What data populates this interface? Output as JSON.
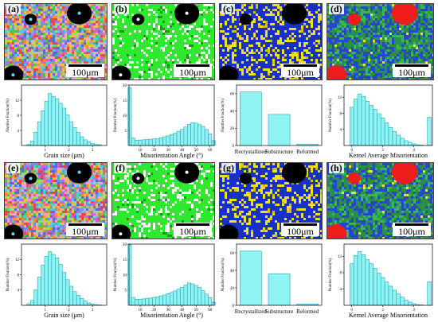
{
  "colors": {
    "bar": "#8ff3f3",
    "bar_edge": "#26a8b8"
  },
  "panels": [
    {
      "label": "(a)",
      "type": "ipf",
      "scale": "100μm"
    },
    {
      "label": "(b)",
      "type": "gb",
      "scale": "100μm"
    },
    {
      "label": "(c)",
      "type": "rex",
      "scale": "100μm"
    },
    {
      "label": "(d)",
      "type": "kam",
      "scale": "100μm"
    },
    {
      "label": "(e)",
      "type": "ipf",
      "scale": "100μm"
    },
    {
      "label": "(f)",
      "type": "gb",
      "scale": "100μm"
    },
    {
      "label": "(g)",
      "type": "rex",
      "scale": "100μm"
    },
    {
      "label": "(h)",
      "type": "kam",
      "scale": "100μm"
    }
  ],
  "chart_data": [
    {
      "type": "bar",
      "xlabel": "Grain size (μm)",
      "ylabel": "Number Fraction(%)",
      "ylim": [
        0,
        16
      ],
      "yticks": [
        "4",
        "8",
        "12"
      ],
      "xticks": [
        "1",
        "2",
        "3"
      ],
      "xlim": [
        0,
        3.6
      ],
      "x": [
        0.3,
        0.45,
        0.6,
        0.75,
        0.9,
        1.05,
        1.2,
        1.35,
        1.5,
        1.65,
        1.8,
        1.95,
        2.1,
        2.25,
        2.4,
        2.55,
        2.7,
        2.85,
        3.0,
        3.15,
        3.3
      ],
      "values": [
        0.3,
        1.2,
        3.5,
        6.3,
        9.2,
        11.7,
        13.8,
        13.0,
        12.3,
        11.2,
        9.9,
        8.1,
        6.3,
        4.8,
        3.5,
        2.3,
        1.5,
        1.0,
        0.5,
        0.3,
        0.2
      ]
    },
    {
      "type": "bar",
      "xlabel": "Misorientation Angle (°)",
      "ylabel": "Number Fraction(%)",
      "ylim": [
        0,
        20
      ],
      "yticks": [
        "5",
        "10",
        "15",
        "20"
      ],
      "xticks": [
        "10",
        "20",
        "30",
        "40",
        "50",
        "60"
      ],
      "xlim": [
        2,
        63
      ],
      "x": [
        2.5,
        5,
        7.5,
        10,
        12.5,
        15,
        17.5,
        20,
        22.5,
        25,
        27.5,
        30,
        32.5,
        35,
        37.5,
        40,
        42.5,
        45,
        47.5,
        50,
        52.5,
        55,
        57.5,
        60,
        62.5
      ],
      "values": [
        19.2,
        2.5,
        1.8,
        1.8,
        1.9,
        2.0,
        2.1,
        2.2,
        2.3,
        2.6,
        2.9,
        3.2,
        3.6,
        4.1,
        4.7,
        5.3,
        6.1,
        7.0,
        7.6,
        7.4,
        6.9,
        6.3,
        5.3,
        3.9,
        1.6
      ]
    },
    {
      "type": "bar",
      "xlabel": "",
      "ylabel": "Number Fraction(%)",
      "ylim": [
        0,
        70
      ],
      "yticks": [
        "0",
        "20",
        "40",
        "60"
      ],
      "categories": [
        "Recrystallized",
        "Substructure",
        "Reformed"
      ],
      "values": [
        62,
        36,
        1.5
      ]
    },
    {
      "type": "bar",
      "xlabel": "Kernel Average Misorientation",
      "ylabel": "Number Fraction(%)",
      "ylim": [
        0,
        15
      ],
      "yticks": [
        "4",
        "8",
        "12"
      ],
      "xticks": [
        "0",
        "2",
        "4"
      ],
      "xlim": [
        -0.5,
        5.2
      ],
      "x": [
        0.0,
        0.25,
        0.5,
        0.75,
        1.0,
        1.25,
        1.5,
        1.75,
        2.0,
        2.25,
        2.5,
        2.75,
        3.0,
        3.25,
        3.5,
        3.75,
        4.0,
        4.25,
        4.5,
        5.0
      ],
      "values": [
        9.5,
        11.5,
        12.8,
        12.2,
        11.0,
        10.0,
        9.0,
        7.9,
        6.8,
        5.6,
        4.5,
        3.5,
        2.6,
        1.8,
        1.2,
        0.8,
        0.4,
        0.2,
        0.1,
        7.0
      ]
    },
    {
      "type": "bar",
      "xlabel": "Grain size (μm)",
      "ylabel": "Number Fraction(%)",
      "ylim": [
        0,
        16
      ],
      "yticks": [
        "4",
        "8",
        "12"
      ],
      "xticks": [
        "1",
        "2",
        "3"
      ],
      "xlim": [
        0,
        3.6
      ],
      "x": [
        0.3,
        0.45,
        0.6,
        0.75,
        0.9,
        1.05,
        1.2,
        1.35,
        1.5,
        1.65,
        1.8,
        1.95,
        2.1,
        2.25,
        2.4,
        2.55,
        2.7,
        2.85,
        3.0,
        3.15,
        3.3
      ],
      "values": [
        0.4,
        1.3,
        4.0,
        7.4,
        10.5,
        12.8,
        14.0,
        13.3,
        12.4,
        10.7,
        8.6,
        6.7,
        5.0,
        3.6,
        2.6,
        1.8,
        1.1,
        0.6,
        0.3,
        0.2,
        0.1
      ]
    },
    {
      "type": "bar",
      "xlabel": "Misorientation Angle (°)",
      "ylabel": "Number Fraction(%)",
      "ylim": [
        0,
        20
      ],
      "yticks": [
        "5",
        "10",
        "15",
        "20"
      ],
      "xticks": [
        "10",
        "20",
        "30",
        "40",
        "50",
        "60"
      ],
      "xlim": [
        2,
        63
      ],
      "x": [
        2.5,
        5,
        7.5,
        10,
        12.5,
        15,
        17.5,
        20,
        22.5,
        25,
        27.5,
        30,
        32.5,
        35,
        37.5,
        40,
        42.5,
        45,
        47.5,
        50,
        52.5,
        55,
        57.5,
        60,
        62.5
      ],
      "values": [
        19.8,
        2.6,
        2.0,
        2.0,
        2.1,
        2.3,
        2.4,
        2.6,
        2.8,
        3.1,
        3.4,
        3.8,
        4.2,
        4.7,
        5.3,
        5.9,
        6.6,
        7.3,
        7.0,
        6.5,
        5.8,
        4.8,
        3.7,
        2.5,
        1.0
      ]
    },
    {
      "type": "bar",
      "xlabel": "",
      "ylabel": "Number Fraction(%)",
      "ylim": [
        0,
        70
      ],
      "yticks": [
        "0",
        "20",
        "40",
        "60"
      ],
      "categories": [
        "Recrystallized",
        "Substructure",
        "Reformed"
      ],
      "values": [
        62,
        36,
        1.5
      ]
    },
    {
      "type": "bar",
      "xlabel": "Kernel Average Misorientation",
      "ylabel": "Number Fraction(%)",
      "ylim": [
        0,
        15
      ],
      "yticks": [
        "4",
        "8",
        "12"
      ],
      "xticks": [
        "0",
        "2",
        "4"
      ],
      "xlim": [
        -0.5,
        5.2
      ],
      "x": [
        0.0,
        0.25,
        0.5,
        0.75,
        1.0,
        1.25,
        1.5,
        1.75,
        2.0,
        2.25,
        2.5,
        2.75,
        3.0,
        3.25,
        3.5,
        3.75,
        4.0,
        4.25,
        4.5,
        5.0
      ],
      "values": [
        10.2,
        12.2,
        13.2,
        12.4,
        11.2,
        10.2,
        9.1,
        7.9,
        6.8,
        5.7,
        4.7,
        3.7,
        2.8,
        2.0,
        1.3,
        0.8,
        0.4,
        0.2,
        0.1,
        5.8
      ]
    }
  ]
}
